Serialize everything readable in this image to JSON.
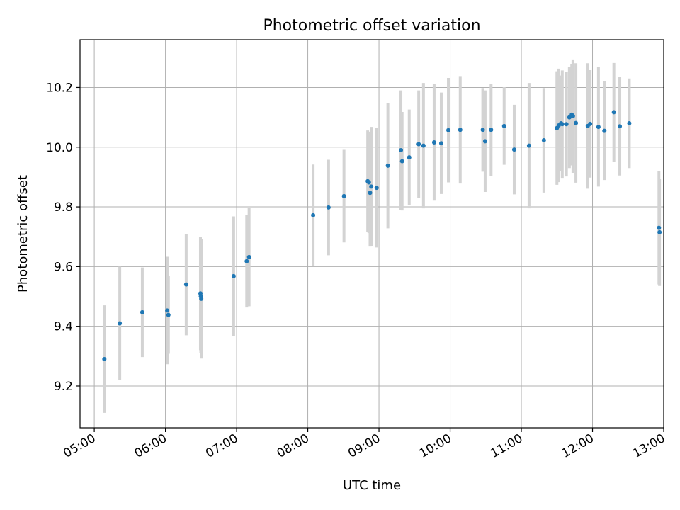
{
  "chart_data": {
    "type": "scatter",
    "title": "Photometric offset variation",
    "xlabel": "UTC time",
    "ylabel": "Photometric offset",
    "grid": true,
    "xlim_minutes": [
      288,
      780
    ],
    "ylim": [
      9.06,
      10.36
    ],
    "xticks": [
      {
        "label": "05:00",
        "min": 300
      },
      {
        "label": "06:00",
        "min": 360
      },
      {
        "label": "07:00",
        "min": 420
      },
      {
        "label": "08:00",
        "min": 480
      },
      {
        "label": "09:00",
        "min": 540
      },
      {
        "label": "10:00",
        "min": 600
      },
      {
        "label": "11:00",
        "min": 660
      },
      {
        "label": "12:00",
        "min": 720
      },
      {
        "label": "13:00",
        "min": 780
      }
    ],
    "yticks": [
      {
        "label": "9.2",
        "v": 9.2
      },
      {
        "label": "9.4",
        "v": 9.4
      },
      {
        "label": "9.6",
        "v": 9.6
      },
      {
        "label": "9.8",
        "v": 9.8
      },
      {
        "label": "10.0",
        "v": 10.0
      },
      {
        "label": "10.2",
        "v": 10.2
      }
    ],
    "series": [
      {
        "name": "photometric offset",
        "x_minutes": [
          308.5,
          321.5,
          340.5,
          361.5,
          362.5,
          377.5,
          389.5,
          389.8,
          390.2,
          417.5,
          428.5,
          430.5,
          484.5,
          497.5,
          510.5,
          530.5,
          531.5,
          532.5,
          533.5,
          538.0,
          547.5,
          558.5,
          559.5,
          565.5,
          573.5,
          577.5,
          586.5,
          592.5,
          598.5,
          608.5,
          627.5,
          629.5,
          634.5,
          645.5,
          654.0,
          666.5,
          679.0,
          690.0,
          691.5,
          693.5,
          694.5,
          698.0,
          700.5,
          702.5,
          703.5,
          706.0,
          716.0,
          718.0,
          725.0,
          730.0,
          738.0,
          743.0,
          751.0,
          776.0,
          776.5
        ],
        "y": [
          9.29,
          9.41,
          9.447,
          9.453,
          9.438,
          9.54,
          9.51,
          9.5,
          9.492,
          9.568,
          9.618,
          9.632,
          9.772,
          9.798,
          9.836,
          9.886,
          9.882,
          9.847,
          9.868,
          9.864,
          9.938,
          9.99,
          9.953,
          9.966,
          10.01,
          10.005,
          10.016,
          10.013,
          10.057,
          10.058,
          10.058,
          10.02,
          10.058,
          10.071,
          9.992,
          10.005,
          10.023,
          10.064,
          10.073,
          10.08,
          10.077,
          10.077,
          10.1,
          10.109,
          10.104,
          10.081,
          10.071,
          10.078,
          10.068,
          10.055,
          10.117,
          10.07,
          10.08,
          9.73,
          9.715
        ],
        "err": [
          0.18,
          0.19,
          0.15,
          0.18,
          0.13,
          0.17,
          0.19,
          0.19,
          0.2,
          0.2,
          0.155,
          0.165,
          0.17,
          0.16,
          0.155,
          0.17,
          0.17,
          0.18,
          0.2,
          0.2,
          0.21,
          0.2,
          0.165,
          0.16,
          0.18,
          0.21,
          0.195,
          0.17,
          0.175,
          0.18,
          0.14,
          0.17,
          0.155,
          0.13,
          0.15,
          0.21,
          0.175,
          0.19,
          0.19,
          0.16,
          0.18,
          0.175,
          0.17,
          0.17,
          0.19,
          0.2,
          0.21,
          0.18,
          0.2,
          0.165,
          0.165,
          0.165,
          0.15,
          0.19,
          0.18
        ]
      }
    ]
  }
}
